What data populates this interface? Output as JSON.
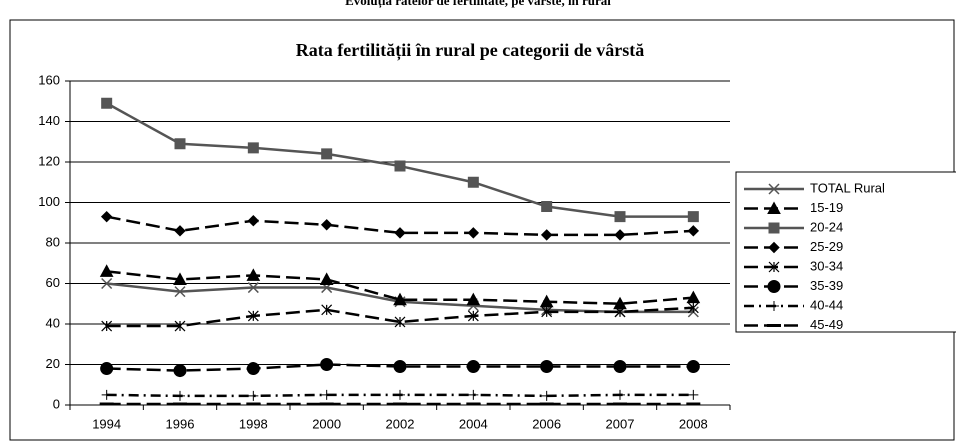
{
  "caption": "Evoluția ratelor de fertilitate, pe vârste, în rural",
  "chart_data": {
    "type": "line",
    "title": "Rata fertilității în rural pe categorii de vârstă",
    "categories": [
      "1994",
      "1996",
      "1998",
      "2000",
      "2002",
      "2004",
      "2006",
      "2007",
      "2008"
    ],
    "ylim": [
      0,
      160
    ],
    "yticks": [
      0,
      20,
      40,
      60,
      80,
      100,
      120,
      140,
      160
    ],
    "grid": true,
    "legend": "right",
    "series": [
      {
        "name": "TOTAL Rural",
        "color": "#555555",
        "dash": "solid",
        "marker": "x",
        "values": [
          60,
          56,
          58,
          58,
          51,
          49,
          47,
          46,
          46
        ]
      },
      {
        "name": "15-19",
        "color": "#000000",
        "dash": "dashed",
        "marker": "triangle",
        "values": [
          66,
          62,
          64,
          62,
          52,
          52,
          51,
          50,
          53
        ]
      },
      {
        "name": "20-24",
        "color": "#555555",
        "dash": "solid",
        "marker": "square",
        "values": [
          149,
          129,
          127,
          124,
          118,
          110,
          98,
          93,
          93
        ]
      },
      {
        "name": "25-29",
        "color": "#000000",
        "dash": "dashed",
        "marker": "diamond",
        "values": [
          93,
          86,
          91,
          89,
          85,
          85,
          84,
          84,
          86
        ]
      },
      {
        "name": "30-34",
        "color": "#000000",
        "dash": "dashed",
        "marker": "star",
        "values": [
          39,
          39,
          44,
          47,
          41,
          44,
          46,
          46,
          48
        ]
      },
      {
        "name": "35-39",
        "color": "#000000",
        "dash": "dashed",
        "marker": "circle",
        "values": [
          18,
          17,
          18,
          20,
          19,
          19,
          19,
          19,
          19
        ]
      },
      {
        "name": "40-44",
        "color": "#000000",
        "dash": "dashdot",
        "marker": "plus",
        "values": [
          5,
          4.5,
          4.5,
          5,
          5,
          5,
          4.5,
          5,
          5
        ]
      },
      {
        "name": "45-49",
        "color": "#000000",
        "dash": "dashed",
        "marker": "dash",
        "values": [
          0.5,
          0.5,
          0.5,
          0.5,
          0.5,
          0.5,
          0.5,
          0.5,
          0.5
        ]
      }
    ]
  }
}
